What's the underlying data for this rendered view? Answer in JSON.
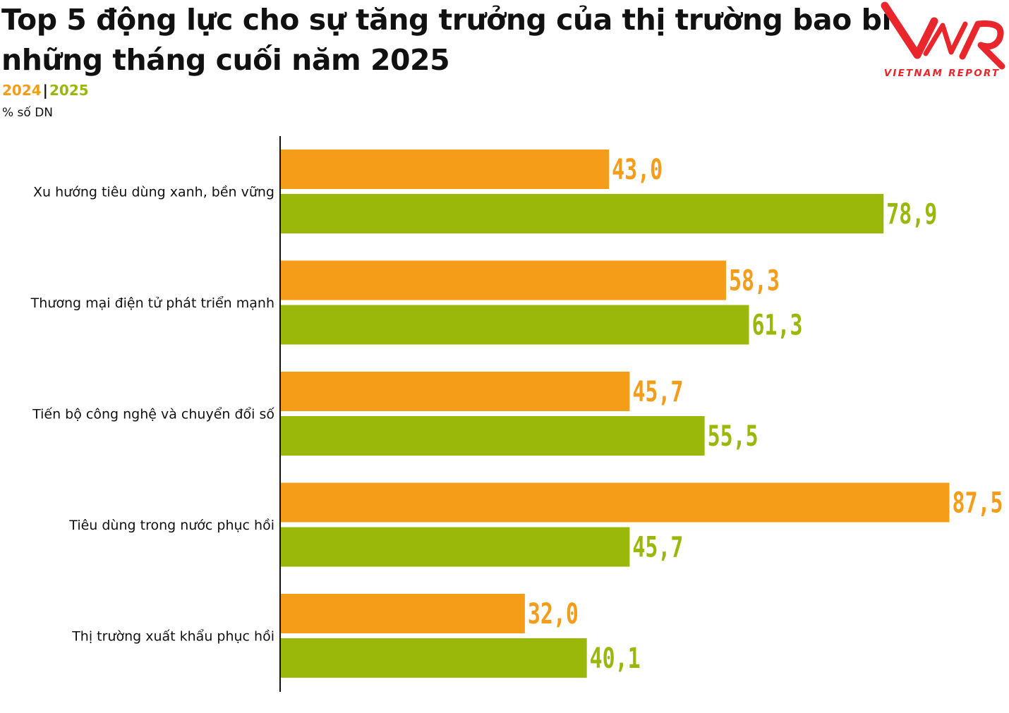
{
  "header": {
    "title_line1": "Top 5 động lực cho sự tăng trưởng của thị trường bao bì",
    "title_line2": "những tháng cuối năm 2025",
    "unit": "% số DN"
  },
  "logo": {
    "text": "VNR",
    "tagline": "VIETNAM REPORT",
    "color": "#e8262c"
  },
  "colors": {
    "series_2024": "#f59c19",
    "series_2025": "#9ab80a",
    "axis": "#111111"
  },
  "chart_data": {
    "type": "bar",
    "orientation": "horizontal",
    "categories": [
      "Xu hướng tiêu dùng xanh, bền vững",
      "Thương mại điện tử phát triển mạnh",
      "Tiến bộ công nghệ và chuyển đổi số",
      "Tiêu dùng trong nước phục hồi",
      "Thị trường xuất khẩu phục hồi"
    ],
    "series": [
      {
        "name": "2024",
        "values": [
          43.0,
          58.3,
          45.7,
          87.5,
          32.0
        ],
        "labels": [
          "43,0",
          "58,3",
          "45,7",
          "87,5",
          "32,0"
        ]
      },
      {
        "name": "2025",
        "values": [
          78.9,
          61.3,
          55.5,
          45.7,
          40.1
        ],
        "labels": [
          "78,9",
          "61,3",
          "55,5",
          "45,7",
          "40,1"
        ]
      }
    ],
    "xlim": [
      0,
      100
    ],
    "legend_placement": "top-left",
    "grid": false
  }
}
